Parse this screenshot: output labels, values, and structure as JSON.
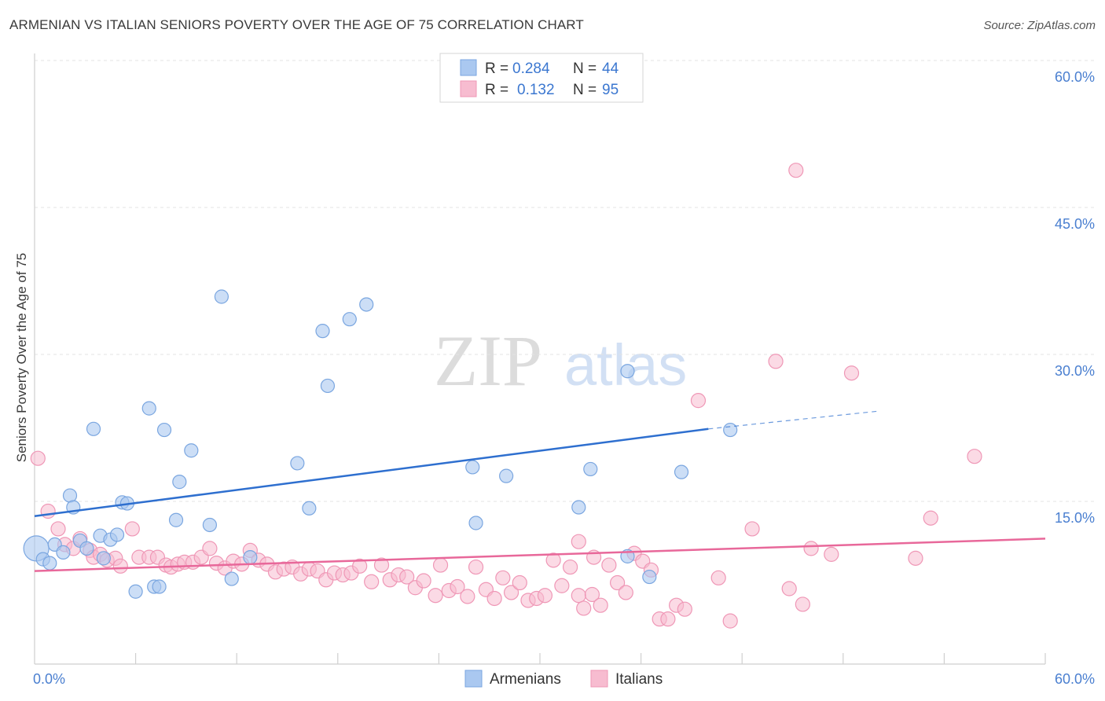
{
  "title": "ARMENIAN VS ITALIAN SENIORS POVERTY OVER THE AGE OF 75 CORRELATION CHART",
  "source": "Source: ZipAtlas.com",
  "watermark": {
    "zip": "ZIP",
    "atlas": "atlas"
  },
  "legend": {
    "rows": [
      {
        "r_label": "R =",
        "r_value": "0.284",
        "n_label": "N =",
        "n_value": "44"
      },
      {
        "r_label": "R =",
        "r_value": "0.132",
        "n_label": "N =",
        "n_value": "95"
      }
    ]
  },
  "bottom_legend": [
    "Armenians",
    "Italians"
  ],
  "chart_data": {
    "type": "scatter",
    "title": "ARMENIAN VS ITALIAN SENIORS POVERTY OVER THE AGE OF 75 CORRELATION CHART",
    "xlabel": "",
    "ylabel": "Seniors Poverty Over the Age of 75",
    "xlim": [
      0,
      60
    ],
    "ylim": [
      0,
      62
    ],
    "x_tick_labels": [
      "0.0%",
      "60.0%"
    ],
    "y_ticks": [
      15,
      30,
      45,
      60
    ],
    "y_tick_labels": [
      "15.0%",
      "30.0%",
      "45.0%",
      "60.0%"
    ],
    "grid": "horizontal dashed",
    "legend_position": "top-center",
    "colors": {
      "armenians_fill": "#aac8f0",
      "armenians_stroke": "#7aa6e0",
      "armenians_line": "#2e6fcf",
      "italians_fill": "#f7bcd0",
      "italians_stroke": "#ef97b6",
      "italians_line": "#e8689a"
    },
    "series": [
      {
        "name": "Armenians",
        "r": 0.284,
        "n": 44,
        "trend": {
          "x": [
            0,
            40
          ],
          "y": [
            15.1,
            24.0
          ],
          "dashed_to_x": 50,
          "dashed_y": 25.8
        },
        "points": [
          [
            0.1,
            11.8
          ],
          [
            0.5,
            10.7
          ],
          [
            0.9,
            10.3
          ],
          [
            1.2,
            12.2
          ],
          [
            1.7,
            11.4
          ],
          [
            2.1,
            17.2
          ],
          [
            2.3,
            16.0
          ],
          [
            2.7,
            12.6
          ],
          [
            3.1,
            11.8
          ],
          [
            3.5,
            24.0
          ],
          [
            3.9,
            13.1
          ],
          [
            4.1,
            10.8
          ],
          [
            4.5,
            12.7
          ],
          [
            4.9,
            13.2
          ],
          [
            5.2,
            16.5
          ],
          [
            5.5,
            16.4
          ],
          [
            6.0,
            7.4
          ],
          [
            6.8,
            26.1
          ],
          [
            7.1,
            7.9
          ],
          [
            7.4,
            7.9
          ],
          [
            7.7,
            23.9
          ],
          [
            8.4,
            14.7
          ],
          [
            8.6,
            18.6
          ],
          [
            9.3,
            21.8
          ],
          [
            10.4,
            14.2
          ],
          [
            11.1,
            37.5
          ],
          [
            11.7,
            8.7
          ],
          [
            12.8,
            10.9
          ],
          [
            15.6,
            20.5
          ],
          [
            16.3,
            15.9
          ],
          [
            17.1,
            34.0
          ],
          [
            17.4,
            28.4
          ],
          [
            18.7,
            35.2
          ],
          [
            19.7,
            36.7
          ],
          [
            26.0,
            20.1
          ],
          [
            26.2,
            14.4
          ],
          [
            28.0,
            19.2
          ],
          [
            32.3,
            16.0
          ],
          [
            33.0,
            19.9
          ],
          [
            35.2,
            29.9
          ],
          [
            35.2,
            11.0
          ],
          [
            36.5,
            8.9
          ],
          [
            38.4,
            19.6
          ],
          [
            41.3,
            23.9
          ]
        ]
      },
      {
        "name": "Italians",
        "r": 0.132,
        "n": 95,
        "trend": {
          "x": [
            0,
            60
          ],
          "y": [
            9.5,
            12.8
          ]
        },
        "points": [
          [
            0.2,
            21.0
          ],
          [
            0.8,
            15.6
          ],
          [
            1.4,
            13.8
          ],
          [
            1.8,
            12.2
          ],
          [
            2.3,
            11.8
          ],
          [
            2.7,
            12.8
          ],
          [
            3.3,
            11.6
          ],
          [
            3.5,
            10.9
          ],
          [
            3.9,
            11.2
          ],
          [
            4.3,
            10.6
          ],
          [
            4.8,
            10.8
          ],
          [
            5.1,
            10.0
          ],
          [
            5.8,
            13.8
          ],
          [
            6.2,
            10.9
          ],
          [
            6.8,
            10.9
          ],
          [
            7.3,
            10.9
          ],
          [
            7.8,
            10.1
          ],
          [
            8.1,
            9.9
          ],
          [
            8.5,
            10.2
          ],
          [
            8.9,
            10.4
          ],
          [
            9.4,
            10.4
          ],
          [
            9.9,
            10.9
          ],
          [
            10.4,
            11.8
          ],
          [
            10.8,
            10.3
          ],
          [
            11.3,
            9.8
          ],
          [
            11.8,
            10.5
          ],
          [
            12.3,
            10.2
          ],
          [
            12.8,
            11.6
          ],
          [
            13.3,
            10.6
          ],
          [
            13.8,
            10.2
          ],
          [
            14.3,
            9.4
          ],
          [
            14.8,
            9.7
          ],
          [
            15.3,
            9.9
          ],
          [
            15.8,
            9.2
          ],
          [
            16.3,
            9.7
          ],
          [
            16.8,
            9.5
          ],
          [
            17.3,
            8.6
          ],
          [
            17.8,
            9.3
          ],
          [
            18.3,
            9.1
          ],
          [
            18.8,
            9.3
          ],
          [
            19.3,
            10.0
          ],
          [
            20.0,
            8.4
          ],
          [
            20.6,
            10.1
          ],
          [
            21.1,
            8.6
          ],
          [
            21.6,
            9.1
          ],
          [
            22.1,
            8.9
          ],
          [
            22.6,
            7.8
          ],
          [
            23.1,
            8.5
          ],
          [
            23.8,
            7.0
          ],
          [
            24.1,
            10.1
          ],
          [
            24.6,
            7.5
          ],
          [
            25.1,
            7.9
          ],
          [
            25.7,
            6.9
          ],
          [
            26.2,
            9.9
          ],
          [
            26.8,
            7.6
          ],
          [
            27.3,
            6.7
          ],
          [
            27.8,
            8.8
          ],
          [
            28.3,
            7.3
          ],
          [
            28.8,
            8.3
          ],
          [
            29.3,
            6.5
          ],
          [
            29.8,
            6.7
          ],
          [
            30.3,
            7.0
          ],
          [
            30.8,
            10.6
          ],
          [
            31.3,
            8.0
          ],
          [
            31.8,
            9.9
          ],
          [
            32.3,
            7.0
          ],
          [
            32.6,
            5.7
          ],
          [
            33.1,
            7.1
          ],
          [
            33.6,
            6.0
          ],
          [
            34.1,
            10.1
          ],
          [
            34.6,
            8.3
          ],
          [
            35.1,
            7.3
          ],
          [
            35.6,
            11.3
          ],
          [
            36.1,
            10.5
          ],
          [
            36.6,
            9.6
          ],
          [
            37.1,
            4.6
          ],
          [
            37.6,
            4.6
          ],
          [
            38.1,
            6.0
          ],
          [
            38.6,
            5.6
          ],
          [
            39.4,
            26.9
          ],
          [
            40.6,
            8.8
          ],
          [
            41.3,
            4.4
          ],
          [
            42.6,
            13.8
          ],
          [
            44.0,
            30.9
          ],
          [
            44.8,
            7.7
          ],
          [
            45.6,
            6.1
          ],
          [
            46.1,
            11.8
          ],
          [
            47.3,
            11.2
          ],
          [
            48.5,
            29.7
          ],
          [
            52.3,
            10.8
          ],
          [
            53.2,
            14.9
          ],
          [
            55.8,
            21.2
          ],
          [
            45.2,
            50.4
          ],
          [
            32.3,
            12.5
          ],
          [
            33.2,
            10.9
          ]
        ]
      }
    ]
  }
}
